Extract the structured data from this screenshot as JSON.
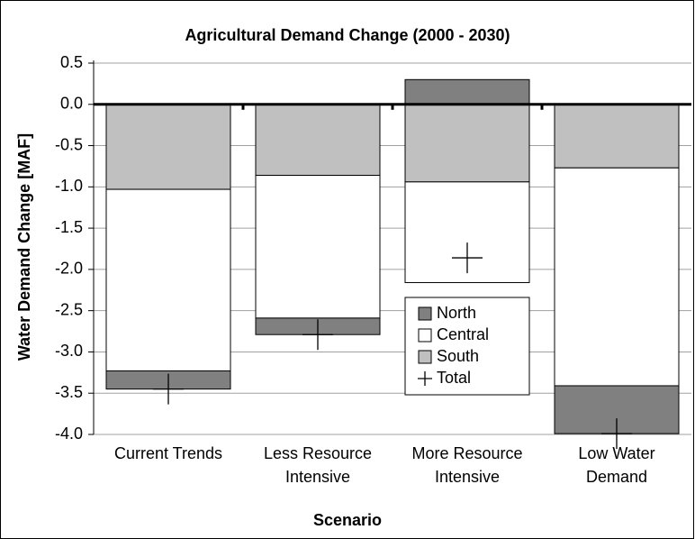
{
  "chart_data": {
    "type": "stacked_bar",
    "title": "Agricultural Demand Change (2000 - 2030)",
    "x_label": "Scenario",
    "y_label": "Water Demand Change [MAF]",
    "categories": [
      [
        "Current Trends"
      ],
      [
        "Less Resource",
        "Intensive"
      ],
      [
        "More Resource",
        "Intensive"
      ],
      [
        "Low  Water",
        "Demand"
      ]
    ],
    "series": [
      {
        "name": "North",
        "color": "#808080",
        "values": [
          -0.22,
          -0.2,
          0.3,
          -0.58
        ]
      },
      {
        "name": "Central",
        "color": "#ffffff",
        "values": [
          -2.2,
          -1.73,
          -1.22,
          -2.64
        ]
      },
      {
        "name": "South",
        "color": "#c0c0c0",
        "values": [
          -1.03,
          -0.86,
          -0.94,
          -0.77
        ]
      },
      {
        "name": "Total",
        "color": "#000000",
        "marker": "plus",
        "values": [
          -3.45,
          -2.79,
          -1.86,
          -3.99
        ]
      }
    ],
    "ylim": [
      -4,
      0.5
    ],
    "yticks": [
      0.5,
      {
        "value": 0,
        "label": "0.0"
      },
      -0.5,
      {
        "value": -1,
        "label": "-1.0"
      },
      -1.5,
      {
        "value": -2,
        "label": "-2.0"
      },
      -2.5,
      {
        "value": -3,
        "label": "-3.0"
      },
      -3.5,
      {
        "value": -4,
        "label": "-4.0"
      }
    ],
    "grid": true,
    "legend": "inside"
  }
}
